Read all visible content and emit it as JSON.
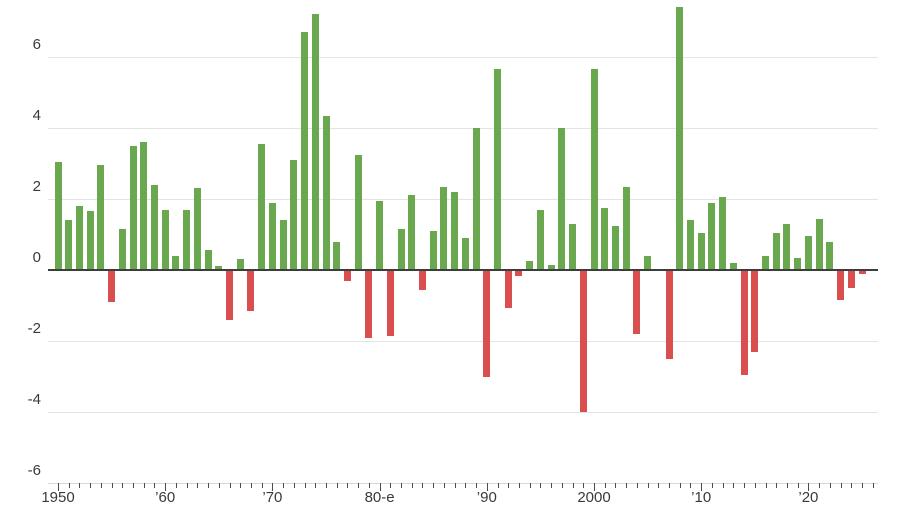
{
  "chart_data": {
    "type": "bar",
    "title": "",
    "xlabel": "",
    "ylabel": "",
    "grid": "horizontal",
    "legend": "none",
    "ylim": [
      -6,
      7.5
    ],
    "yticks": [
      6,
      4,
      2,
      0,
      -2,
      -4,
      -6
    ],
    "ytick_labels": [
      "6",
      "4",
      "2",
      "0",
      "-2",
      "-4",
      "-6"
    ],
    "xtick_labels": [
      {
        "year": 1950,
        "label": "1950"
      },
      {
        "year": 1960,
        "label": "’60"
      },
      {
        "year": 1970,
        "label": "’70"
      },
      {
        "year": 1980,
        "label": "80-e"
      },
      {
        "year": 1990,
        "label": "’90"
      },
      {
        "year": 2000,
        "label": "2000"
      },
      {
        "year": 2010,
        "label": "’10"
      },
      {
        "year": 2020,
        "label": "’20"
      }
    ],
    "minor_ticks": {
      "start": 1950,
      "end": 2026,
      "step": 1
    },
    "colors": {
      "positive": "#6aa850",
      "negative": "#d94f4f",
      "zero_axis": "#3d3d3d",
      "gridline": "#e4e4e4",
      "text": "#3a3a3a"
    },
    "years": [
      1950,
      1951,
      1952,
      1953,
      1954,
      1955,
      1956,
      1957,
      1958,
      1959,
      1960,
      1961,
      1962,
      1963,
      1964,
      1965,
      1966,
      1967,
      1968,
      1969,
      1970,
      1971,
      1972,
      1973,
      1974,
      1975,
      1976,
      1977,
      1978,
      1979,
      1980,
      1981,
      1982,
      1983,
      1984,
      1985,
      1986,
      1987,
      1988,
      1989,
      1990,
      1991,
      1992,
      1993,
      1994,
      1995,
      1996,
      1997,
      1998,
      1999,
      2000,
      2001,
      2002,
      2003,
      2004,
      2005,
      2006,
      2007,
      2008,
      2009,
      2010,
      2011,
      2012,
      2013,
      2014,
      2015,
      2016,
      2017,
      2018,
      2019,
      2020,
      2021,
      2022,
      2023,
      2024,
      2025
    ],
    "values": [
      3.05,
      1.4,
      1.8,
      1.65,
      2.95,
      -0.9,
      1.15,
      3.5,
      3.6,
      2.4,
      1.7,
      0.4,
      1.7,
      2.3,
      0.55,
      0.1,
      -1.4,
      0.3,
      -1.15,
      3.55,
      1.9,
      1.4,
      3.1,
      6.7,
      7.2,
      4.35,
      0.8,
      -0.3,
      3.25,
      -1.9,
      1.95,
      -1.85,
      1.15,
      2.1,
      -0.55,
      1.1,
      2.35,
      2.2,
      0.9,
      4.0,
      -3.0,
      5.65,
      -1.05,
      -0.15,
      0.25,
      1.7,
      0.15,
      4.0,
      1.3,
      -4.0,
      5.65,
      1.75,
      1.25,
      2.35,
      -1.8,
      0.4,
      0.0,
      -2.5,
      7.4,
      1.4,
      1.05,
      1.9,
      2.05,
      0.2,
      -2.95,
      -2.3,
      0.4,
      1.05,
      1.3,
      0.35,
      0.95,
      1.45,
      0.8,
      -0.85,
      -0.5,
      -0.1
    ]
  }
}
